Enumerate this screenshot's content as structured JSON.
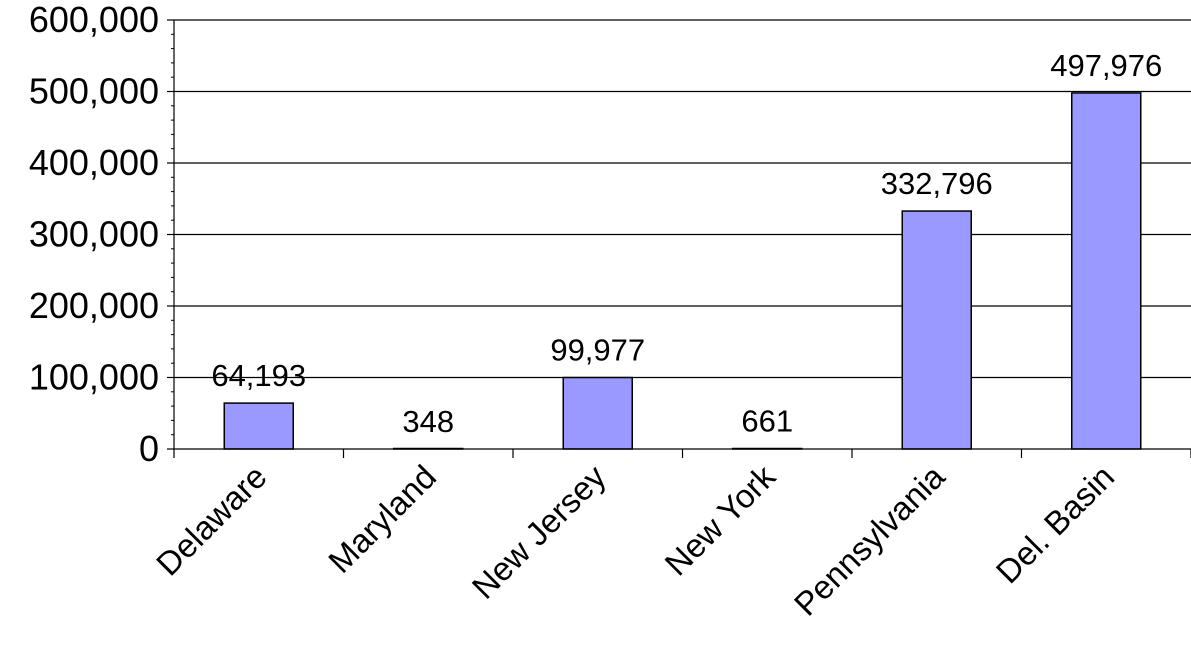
{
  "chart_data": {
    "type": "bar",
    "title": "",
    "xlabel": "",
    "ylabel": "",
    "categories": [
      "Delaware",
      "Maryland",
      "New Jersey",
      "New York",
      "Pennsylvania",
      "Del. Basin"
    ],
    "values": [
      64193,
      348,
      99977,
      661,
      332796,
      497976
    ],
    "data_labels": [
      "64,193",
      "348",
      "99,977",
      "661",
      "332,796",
      "497,976"
    ],
    "ylim": [
      0,
      600000
    ],
    "yticks": [
      0,
      100000,
      200000,
      300000,
      400000,
      500000,
      600000
    ],
    "ytick_labels": [
      "0",
      "100,000",
      "200,000",
      "300,000",
      "400,000",
      "500,000",
      "600,000"
    ],
    "grid": true,
    "legend": "none",
    "colors": {
      "bar_fill": "#9999ff",
      "bar_stroke": "#000000",
      "grid": "#000000",
      "axis": "#000000",
      "background": "#ffffff"
    }
  }
}
